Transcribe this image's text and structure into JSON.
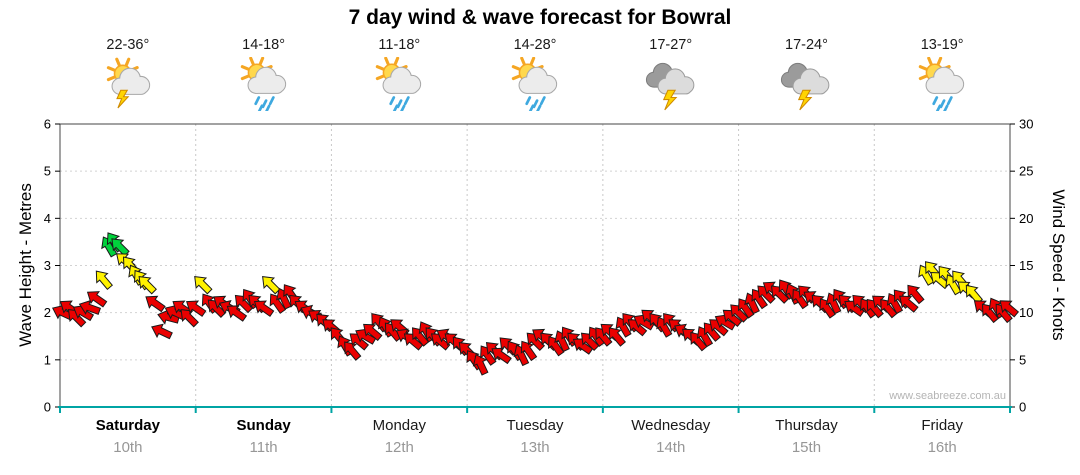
{
  "title": "7 day wind & wave forecast for Bowral",
  "watermark": "www.seabreeze.com.au",
  "axes": {
    "left_label": "Wave Height - Metres",
    "right_label": "Wind Speed - Knots",
    "left_ticks": [
      0,
      1,
      2,
      3,
      4,
      5,
      6
    ],
    "right_ticks": [
      0,
      5,
      10,
      15,
      20,
      25,
      30
    ],
    "left_max": 6,
    "right_max": 30
  },
  "days": [
    {
      "name": "Saturday",
      "date": "10th",
      "temp": "22-36°",
      "icon": "sun-cloud-storm",
      "weekend": true
    },
    {
      "name": "Sunday",
      "date": "11th",
      "temp": "14-18°",
      "icon": "sun-cloud-rain",
      "weekend": true
    },
    {
      "name": "Monday",
      "date": "12th",
      "temp": "11-18°",
      "icon": "sun-cloud-rain",
      "weekend": false
    },
    {
      "name": "Tuesday",
      "date": "13th",
      "temp": "14-28°",
      "icon": "sun-cloud-rain",
      "weekend": false
    },
    {
      "name": "Wednesday",
      "date": "14th",
      "temp": "17-27°",
      "icon": "storm",
      "weekend": false
    },
    {
      "name": "Thursday",
      "date": "15th",
      "temp": "17-24°",
      "icon": "storm",
      "weekend": false
    },
    {
      "name": "Friday",
      "date": "16th",
      "temp": "13-19°",
      "icon": "sun-cloud-rain",
      "weekend": false
    }
  ],
  "chart_data": {
    "type": "wind-arrows",
    "x_unit": "days",
    "y_unit": "knots",
    "ylim": [
      0,
      30
    ],
    "wave_axis_lim": [
      0,
      6
    ],
    "legend": "arrow colour indicates wind strength",
    "colors": {
      "r": "#ea0000",
      "y": "#fff200",
      "g": "#00d23c"
    },
    "points_format": [
      "day_offset",
      "knots",
      "direction_deg",
      "color"
    ],
    "points": [
      [
        0.02,
        10,
        205,
        "r"
      ],
      [
        0.07,
        10.5,
        215,
        "r"
      ],
      [
        0.12,
        9.5,
        225,
        "r"
      ],
      [
        0.17,
        10,
        210,
        "r"
      ],
      [
        0.22,
        10.5,
        200,
        "r"
      ],
      [
        0.27,
        11.5,
        215,
        "r"
      ],
      [
        0.32,
        13.5,
        230,
        "y"
      ],
      [
        0.36,
        17,
        240,
        "g"
      ],
      [
        0.4,
        17.5,
        235,
        "g"
      ],
      [
        0.44,
        17,
        225,
        "g"
      ],
      [
        0.48,
        15.5,
        220,
        "y"
      ],
      [
        0.52,
        15,
        230,
        "y"
      ],
      [
        0.56,
        14,
        240,
        "y"
      ],
      [
        0.6,
        13.5,
        235,
        "y"
      ],
      [
        0.64,
        13,
        225,
        "y"
      ],
      [
        0.7,
        11,
        215,
        "r"
      ],
      [
        0.75,
        8,
        205,
        "r"
      ],
      [
        0.8,
        9.5,
        195,
        "r"
      ],
      [
        0.85,
        10,
        205,
        "r"
      ],
      [
        0.9,
        10.5,
        215,
        "r"
      ],
      [
        0.95,
        9.5,
        225,
        "r"
      ],
      [
        1.0,
        10.5,
        215,
        "r"
      ],
      [
        1.05,
        13,
        225,
        "y"
      ],
      [
        1.1,
        11,
        235,
        "r"
      ],
      [
        1.15,
        10.5,
        225,
        "r"
      ],
      [
        1.2,
        11,
        215,
        "r"
      ],
      [
        1.25,
        10.5,
        205,
        "r"
      ],
      [
        1.3,
        10,
        215,
        "r"
      ],
      [
        1.35,
        11,
        225,
        "r"
      ],
      [
        1.4,
        11.5,
        235,
        "r"
      ],
      [
        1.45,
        11,
        225,
        "r"
      ],
      [
        1.5,
        10.5,
        215,
        "r"
      ],
      [
        1.55,
        13,
        225,
        "y"
      ],
      [
        1.6,
        11,
        235,
        "r"
      ],
      [
        1.65,
        11.5,
        245,
        "r"
      ],
      [
        1.7,
        12,
        235,
        "r"
      ],
      [
        1.75,
        11,
        225,
        "r"
      ],
      [
        1.8,
        10.5,
        215,
        "r"
      ],
      [
        1.85,
        10,
        205,
        "r"
      ],
      [
        1.9,
        9.5,
        215,
        "r"
      ],
      [
        1.95,
        9,
        225,
        "r"
      ],
      [
        2.0,
        8.5,
        220,
        "r"
      ],
      [
        2.05,
        7.5,
        230,
        "r"
      ],
      [
        2.1,
        6.5,
        240,
        "r"
      ],
      [
        2.15,
        6,
        230,
        "r"
      ],
      [
        2.2,
        7,
        220,
        "r"
      ],
      [
        2.25,
        7.5,
        210,
        "r"
      ],
      [
        2.3,
        8,
        220,
        "r"
      ],
      [
        2.35,
        9,
        230,
        "r"
      ],
      [
        2.4,
        8.5,
        240,
        "r"
      ],
      [
        2.45,
        8,
        230,
        "r"
      ],
      [
        2.5,
        8.5,
        220,
        "r"
      ],
      [
        2.55,
        7.5,
        210,
        "r"
      ],
      [
        2.6,
        7,
        220,
        "r"
      ],
      [
        2.65,
        7.5,
        230,
        "r"
      ],
      [
        2.7,
        8,
        240,
        "r"
      ],
      [
        2.75,
        7.5,
        230,
        "r"
      ],
      [
        2.8,
        7,
        220,
        "r"
      ],
      [
        2.85,
        7.5,
        210,
        "r"
      ],
      [
        2.9,
        7,
        220,
        "r"
      ],
      [
        2.95,
        6.5,
        230,
        "r"
      ],
      [
        3.0,
        6,
        225,
        "r"
      ],
      [
        3.05,
        5,
        235,
        "r"
      ],
      [
        3.1,
        4.5,
        245,
        "r"
      ],
      [
        3.15,
        5.5,
        235,
        "r"
      ],
      [
        3.2,
        6,
        225,
        "r"
      ],
      [
        3.25,
        5.5,
        215,
        "r"
      ],
      [
        3.3,
        6.5,
        225,
        "r"
      ],
      [
        3.35,
        6,
        235,
        "r"
      ],
      [
        3.4,
        5.5,
        245,
        "r"
      ],
      [
        3.45,
        6,
        235,
        "r"
      ],
      [
        3.5,
        7,
        225,
        "r"
      ],
      [
        3.55,
        7.5,
        215,
        "r"
      ],
      [
        3.6,
        7,
        225,
        "r"
      ],
      [
        3.65,
        6.5,
        235,
        "r"
      ],
      [
        3.7,
        7,
        245,
        "r"
      ],
      [
        3.75,
        7.5,
        235,
        "r"
      ],
      [
        3.8,
        7,
        225,
        "r"
      ],
      [
        3.85,
        6.5,
        215,
        "r"
      ],
      [
        3.9,
        7,
        225,
        "r"
      ],
      [
        3.95,
        7.5,
        235,
        "r"
      ],
      [
        4.0,
        7.5,
        230,
        "r"
      ],
      [
        4.05,
        8,
        220,
        "r"
      ],
      [
        4.1,
        7.5,
        230,
        "r"
      ],
      [
        4.15,
        8.5,
        240,
        "r"
      ],
      [
        4.2,
        9,
        230,
        "r"
      ],
      [
        4.25,
        8.5,
        220,
        "r"
      ],
      [
        4.3,
        9,
        210,
        "r"
      ],
      [
        4.35,
        9.5,
        220,
        "r"
      ],
      [
        4.4,
        9,
        230,
        "r"
      ],
      [
        4.45,
        8.5,
        240,
        "r"
      ],
      [
        4.5,
        9,
        230,
        "r"
      ],
      [
        4.55,
        8.5,
        220,
        "r"
      ],
      [
        4.6,
        8,
        210,
        "r"
      ],
      [
        4.65,
        7.5,
        220,
        "r"
      ],
      [
        4.7,
        7,
        230,
        "r"
      ],
      [
        4.75,
        7.5,
        240,
        "r"
      ],
      [
        4.8,
        8,
        230,
        "r"
      ],
      [
        4.85,
        8.5,
        220,
        "r"
      ],
      [
        4.9,
        9,
        210,
        "r"
      ],
      [
        4.95,
        9.5,
        220,
        "r"
      ],
      [
        5.0,
        10,
        225,
        "r"
      ],
      [
        5.05,
        10.5,
        235,
        "r"
      ],
      [
        5.1,
        11,
        245,
        "r"
      ],
      [
        5.15,
        11.5,
        235,
        "r"
      ],
      [
        5.2,
        12,
        225,
        "r"
      ],
      [
        5.25,
        12.5,
        215,
        "r"
      ],
      [
        5.3,
        12,
        225,
        "r"
      ],
      [
        5.35,
        12.5,
        235,
        "r"
      ],
      [
        5.4,
        12,
        245,
        "r"
      ],
      [
        5.45,
        11.5,
        235,
        "r"
      ],
      [
        5.5,
        12,
        225,
        "r"
      ],
      [
        5.55,
        11.5,
        215,
        "r"
      ],
      [
        5.6,
        11,
        225,
        "r"
      ],
      [
        5.65,
        10.5,
        235,
        "r"
      ],
      [
        5.7,
        11,
        245,
        "r"
      ],
      [
        5.75,
        11.5,
        235,
        "r"
      ],
      [
        5.8,
        11,
        225,
        "r"
      ],
      [
        5.85,
        10.5,
        215,
        "r"
      ],
      [
        5.9,
        11,
        225,
        "r"
      ],
      [
        5.95,
        10.5,
        235,
        "r"
      ],
      [
        6.0,
        10.5,
        230,
        "r"
      ],
      [
        6.05,
        11,
        220,
        "r"
      ],
      [
        6.1,
        10.5,
        230,
        "r"
      ],
      [
        6.15,
        11,
        240,
        "r"
      ],
      [
        6.2,
        11.5,
        230,
        "r"
      ],
      [
        6.25,
        11,
        220,
        "r"
      ],
      [
        6.3,
        12,
        230,
        "r"
      ],
      [
        6.38,
        14,
        240,
        "y"
      ],
      [
        6.43,
        14.5,
        230,
        "y"
      ],
      [
        6.48,
        13.5,
        220,
        "y"
      ],
      [
        6.53,
        14,
        230,
        "y"
      ],
      [
        6.58,
        13,
        240,
        "y"
      ],
      [
        6.63,
        13.5,
        230,
        "y"
      ],
      [
        6.68,
        12.5,
        220,
        "y"
      ],
      [
        6.73,
        12,
        230,
        "y"
      ],
      [
        6.8,
        10.5,
        220,
        "r"
      ],
      [
        6.85,
        10,
        230,
        "r"
      ],
      [
        6.9,
        10.5,
        240,
        "r"
      ],
      [
        6.95,
        10,
        230,
        "r"
      ],
      [
        6.99,
        10.5,
        220,
        "r"
      ]
    ]
  }
}
